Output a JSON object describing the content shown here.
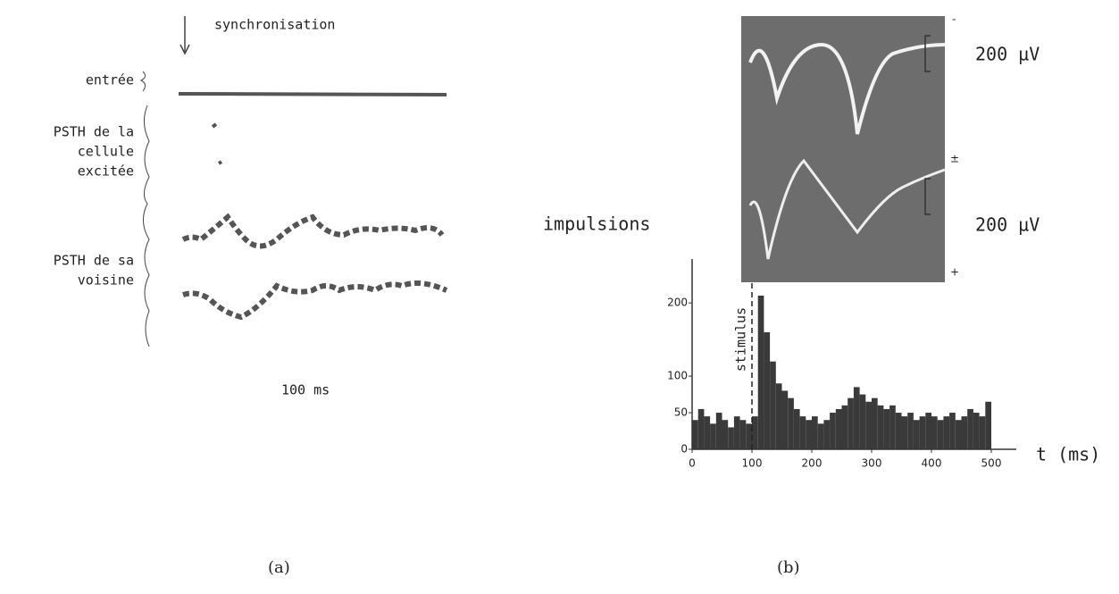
{
  "panel_a": {
    "sync_label": "synchronisation",
    "input_label": "entrée",
    "cell_label": [
      "PSTH de la",
      "cellule",
      "excitée"
    ],
    "neighbor_label": [
      "PSTH de sa",
      "voisine"
    ],
    "scale_label": "100 ms",
    "caption": "(a)"
  },
  "panel_b": {
    "trace_scale_top": "200 µV",
    "trace_scale_bottom": "200 µV",
    "sign_top": "-",
    "sign_mid": "±",
    "sign_bottom": "+",
    "caption": "(b)"
  },
  "chart_data": {
    "type": "histogram",
    "y_label": "impulsions",
    "x_label": "t (ms)",
    "annotation": {
      "text": "stimulus",
      "x": 100
    },
    "bins": [
      0,
      10,
      20,
      30,
      40,
      50,
      60,
      70,
      80,
      90,
      100,
      110,
      120,
      130,
      140,
      150,
      160,
      170,
      180,
      190,
      200,
      210,
      220,
      230,
      240,
      250,
      260,
      270,
      280,
      290,
      300,
      310,
      320,
      330,
      340,
      350,
      360,
      370,
      380,
      390,
      400,
      410,
      420,
      430,
      440,
      450,
      460,
      470,
      480,
      490,
      500
    ],
    "values": [
      40,
      55,
      45,
      35,
      50,
      40,
      30,
      45,
      40,
      35,
      45,
      210,
      160,
      120,
      90,
      80,
      70,
      55,
      45,
      40,
      45,
      35,
      40,
      50,
      55,
      60,
      70,
      85,
      75,
      65,
      70,
      60,
      55,
      60,
      50,
      45,
      50,
      40,
      45,
      50,
      45,
      40,
      45,
      50,
      40,
      45,
      55,
      50,
      45,
      65
    ],
    "color": "#3a3a3a",
    "xlim": [
      0,
      500
    ],
    "ylim": [
      0,
      260
    ],
    "xticks": [
      0,
      100,
      200,
      300,
      400,
      500
    ],
    "yticks": [
      0,
      50,
      100,
      200
    ]
  }
}
